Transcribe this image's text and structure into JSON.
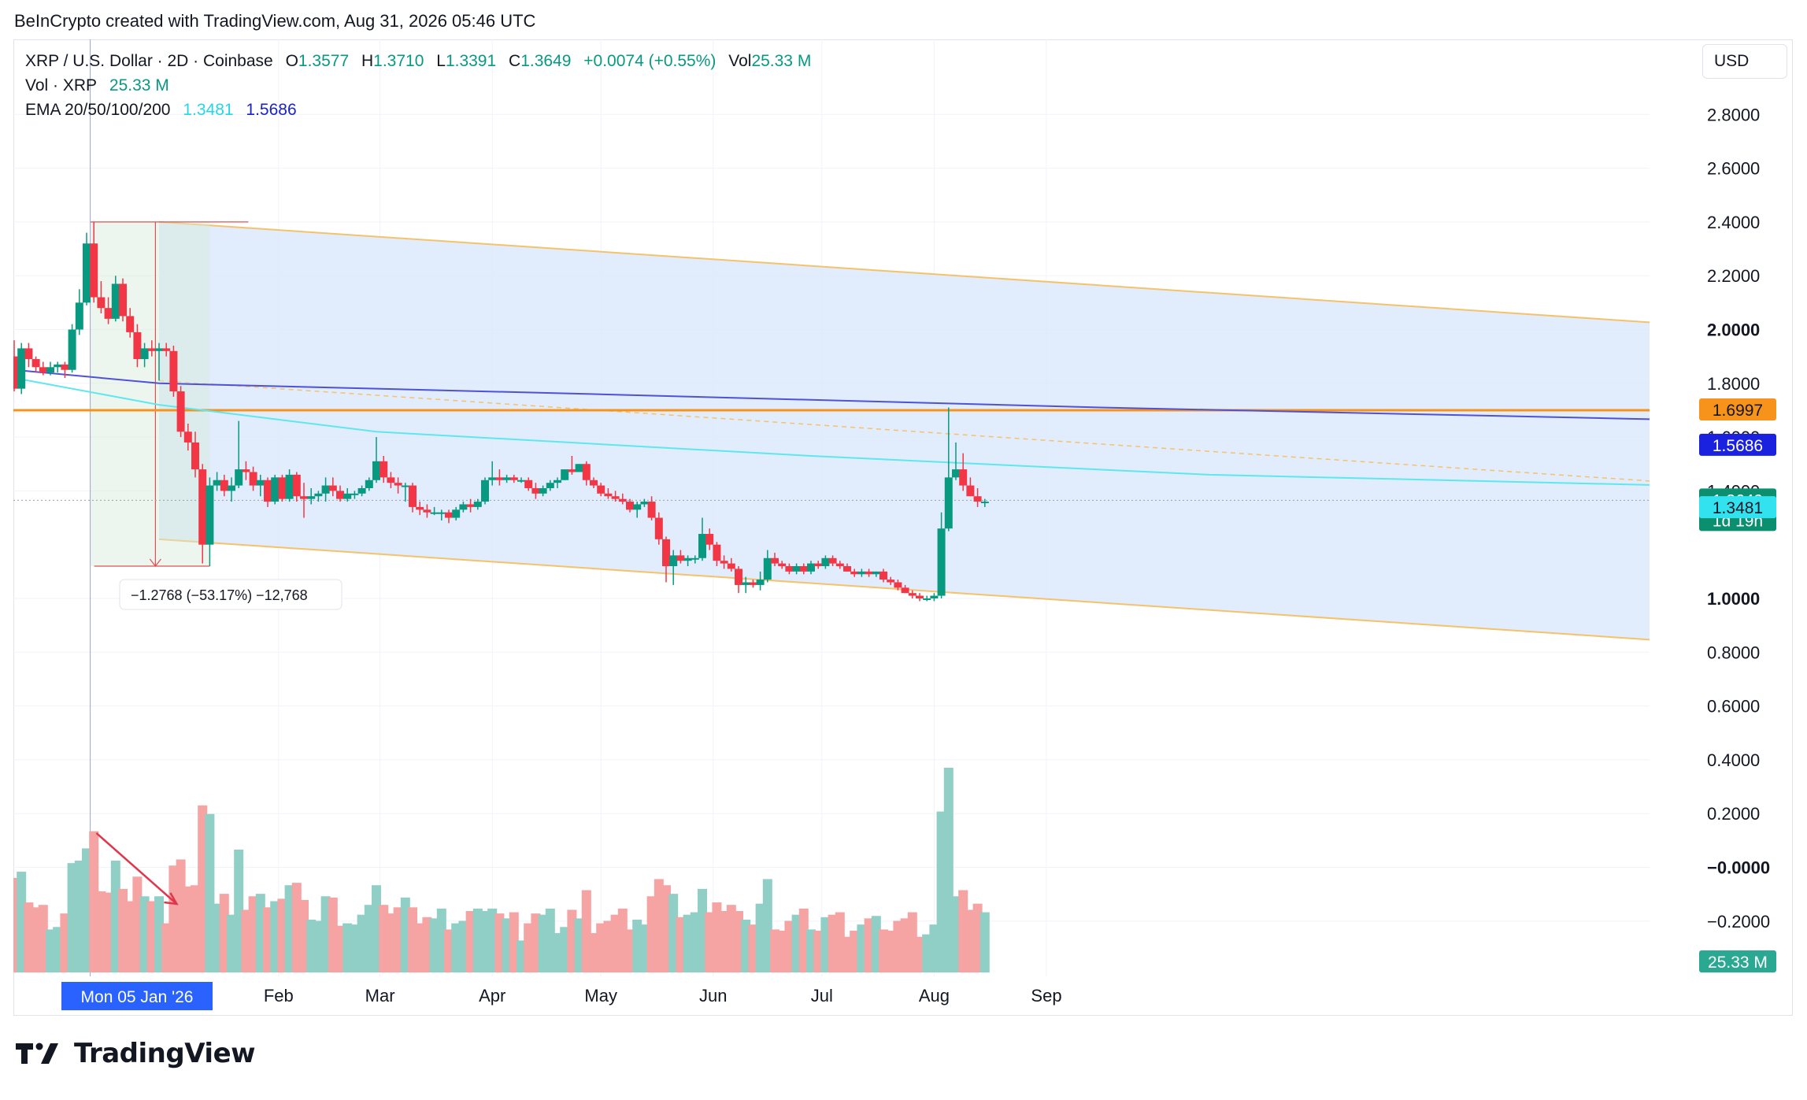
{
  "attribution": "BeInCrypto created with TradingView.com, Aug 31, 2026 05:46 UTC",
  "legend": {
    "symbol": "XRP / U.S. Dollar · 2D · Coinbase",
    "o_label": "O",
    "o_value": "1.3577",
    "h_label": "H",
    "h_value": "1.3710",
    "l_label": "L",
    "l_value": "1.3391",
    "c_label": "C",
    "c_value": "1.3649",
    "change": "+0.0074 (+0.55%)",
    "vol_label": "Vol",
    "vol_value": "25.33 M",
    "vol_xrp_label": "Vol · XRP",
    "vol_xrp_value": "25.33 M",
    "ema_label": "EMA 20/50/100/200",
    "ema1": "1.3481",
    "ema2": "1.5686"
  },
  "currency": "USD",
  "measure_label": "−1.2768 (−53.17%) −12,768",
  "date_badge": "Mon 05 Jan '26",
  "footer_brand": "TradingView",
  "colors": {
    "up": "#089981",
    "down": "#f23645",
    "up_vol": "#8fcfc6",
    "down_vol": "#f5a3a3",
    "ema1": "#5ee7ef",
    "ema2": "#4f52d6",
    "resistance": "#f7931a",
    "channel_fill": "#dce9fb",
    "channel_line": "#f5c26b"
  },
  "chart_data": {
    "type": "candlestick",
    "y_ticks": [
      "2.8000",
      "2.6000",
      "2.4000",
      "2.2000",
      "2.0000",
      "1.8000",
      "1.6000",
      "1.4000",
      "1.0000",
      "0.8000",
      "0.6000",
      "0.4000",
      "0.2000",
      "−0.0000",
      "−0.2000"
    ],
    "bold_ticks": [
      "2.0000",
      "1.0000",
      "−0.0000"
    ],
    "ylim": [
      -0.4,
      3.0
    ],
    "x_ticks": [
      {
        "label": "Feb",
        "date": "2026-02-01"
      },
      {
        "label": "Mar",
        "date": "2026-03-01"
      },
      {
        "label": "Apr",
        "date": "2026-04-01"
      },
      {
        "label": "May",
        "date": "2026-05-01"
      },
      {
        "label": "Jun",
        "date": "2026-06-01"
      },
      {
        "label": "Jul",
        "date": "2026-07-01"
      },
      {
        "label": "Aug",
        "date": "2026-08-01"
      },
      {
        "label": "Sep",
        "date": "2026-09-01"
      }
    ],
    "candles": [
      {
        "d": "2025-11-20",
        "o": 1.9,
        "h": 1.96,
        "l": 1.77,
        "c": 1.78
      },
      {
        "d": "2025-11-22",
        "o": 1.78,
        "h": 1.95,
        "l": 1.76,
        "c": 1.93
      },
      {
        "d": "2025-11-24",
        "o": 1.93,
        "h": 1.95,
        "l": 1.86,
        "c": 1.89
      },
      {
        "d": "2025-11-26",
        "o": 1.89,
        "h": 1.9,
        "l": 1.84,
        "c": 1.86
      },
      {
        "d": "2025-11-28",
        "o": 1.86,
        "h": 1.88,
        "l": 1.83,
        "c": 1.84
      },
      {
        "d": "2025-11-30",
        "o": 1.84,
        "h": 1.88,
        "l": 1.83,
        "c": 1.86
      },
      {
        "d": "2025-12-02",
        "o": 1.86,
        "h": 1.88,
        "l": 1.84,
        "c": 1.87
      },
      {
        "d": "2025-12-04",
        "o": 1.87,
        "h": 1.88,
        "l": 1.82,
        "c": 1.85
      },
      {
        "d": "2025-12-06",
        "o": 1.85,
        "h": 2.02,
        "l": 1.84,
        "c": 2.0
      },
      {
        "d": "2025-12-08",
        "o": 2.0,
        "h": 2.15,
        "l": 1.98,
        "c": 2.1
      },
      {
        "d": "2025-12-10",
        "o": 2.1,
        "h": 2.36,
        "l": 2.09,
        "c": 2.32
      },
      {
        "d": "2025-12-12",
        "o": 2.32,
        "h": 2.4,
        "l": 2.1,
        "c": 2.12
      },
      {
        "d": "2025-12-14",
        "o": 2.12,
        "h": 2.18,
        "l": 2.06,
        "c": 2.08
      },
      {
        "d": "2025-12-16",
        "o": 2.08,
        "h": 2.12,
        "l": 2.02,
        "c": 2.04
      },
      {
        "d": "2025-12-18",
        "o": 2.04,
        "h": 2.2,
        "l": 2.03,
        "c": 2.17
      },
      {
        "d": "2025-12-20",
        "o": 2.17,
        "h": 2.19,
        "l": 2.03,
        "c": 2.05
      },
      {
        "d": "2025-12-22",
        "o": 2.05,
        "h": 2.08,
        "l": 1.97,
        "c": 1.99
      },
      {
        "d": "2025-12-24",
        "o": 1.99,
        "h": 2.02,
        "l": 1.86,
        "c": 1.89
      },
      {
        "d": "2025-12-26",
        "o": 1.89,
        "h": 1.95,
        "l": 1.86,
        "c": 1.93
      },
      {
        "d": "2025-12-28",
        "o": 1.93,
        "h": 1.96,
        "l": 1.9,
        "c": 1.92
      },
      {
        "d": "2025-12-30",
        "o": 1.92,
        "h": 1.95,
        "l": 1.81,
        "c": 1.93
      },
      {
        "d": "2026-01-01",
        "o": 1.93,
        "h": 1.95,
        "l": 1.9,
        "c": 1.92
      },
      {
        "d": "2026-01-03",
        "o": 1.92,
        "h": 1.94,
        "l": 1.75,
        "c": 1.77
      },
      {
        "d": "2026-01-05",
        "o": 1.77,
        "h": 1.79,
        "l": 1.6,
        "c": 1.62
      },
      {
        "d": "2026-01-07",
        "o": 1.62,
        "h": 1.65,
        "l": 1.55,
        "c": 1.58
      },
      {
        "d": "2026-01-09",
        "o": 1.58,
        "h": 1.62,
        "l": 1.45,
        "c": 1.48
      },
      {
        "d": "2026-01-11",
        "o": 1.48,
        "h": 1.5,
        "l": 1.13,
        "c": 1.2
      },
      {
        "d": "2026-01-13",
        "o": 1.2,
        "h": 1.45,
        "l": 1.12,
        "c": 1.42
      },
      {
        "d": "2026-01-15",
        "o": 1.42,
        "h": 1.47,
        "l": 1.4,
        "c": 1.44
      },
      {
        "d": "2026-01-17",
        "o": 1.44,
        "h": 1.46,
        "l": 1.38,
        "c": 1.4
      },
      {
        "d": "2026-01-19",
        "o": 1.4,
        "h": 1.45,
        "l": 1.36,
        "c": 1.42
      },
      {
        "d": "2026-01-21",
        "o": 1.42,
        "h": 1.66,
        "l": 1.41,
        "c": 1.48
      },
      {
        "d": "2026-01-23",
        "o": 1.48,
        "h": 1.51,
        "l": 1.44,
        "c": 1.47
      },
      {
        "d": "2026-01-25",
        "o": 1.47,
        "h": 1.49,
        "l": 1.4,
        "c": 1.42
      },
      {
        "d": "2026-01-27",
        "o": 1.42,
        "h": 1.46,
        "l": 1.38,
        "c": 1.44
      },
      {
        "d": "2026-01-29",
        "o": 1.44,
        "h": 1.45,
        "l": 1.34,
        "c": 1.36
      },
      {
        "d": "2026-01-31",
        "o": 1.36,
        "h": 1.46,
        "l": 1.35,
        "c": 1.45
      },
      {
        "d": "2026-02-02",
        "o": 1.45,
        "h": 1.46,
        "l": 1.36,
        "c": 1.37
      },
      {
        "d": "2026-02-04",
        "o": 1.37,
        "h": 1.48,
        "l": 1.36,
        "c": 1.46
      },
      {
        "d": "2026-02-06",
        "o": 1.46,
        "h": 1.47,
        "l": 1.36,
        "c": 1.38
      },
      {
        "d": "2026-02-08",
        "o": 1.38,
        "h": 1.43,
        "l": 1.3,
        "c": 1.37
      },
      {
        "d": "2026-02-10",
        "o": 1.37,
        "h": 1.41,
        "l": 1.35,
        "c": 1.38
      },
      {
        "d": "2026-02-12",
        "o": 1.38,
        "h": 1.4,
        "l": 1.36,
        "c": 1.39
      },
      {
        "d": "2026-02-14",
        "o": 1.39,
        "h": 1.45,
        "l": 1.36,
        "c": 1.42
      },
      {
        "d": "2026-02-16",
        "o": 1.42,
        "h": 1.45,
        "l": 1.38,
        "c": 1.4
      },
      {
        "d": "2026-02-18",
        "o": 1.4,
        "h": 1.42,
        "l": 1.36,
        "c": 1.37
      },
      {
        "d": "2026-02-20",
        "o": 1.37,
        "h": 1.41,
        "l": 1.36,
        "c": 1.39
      },
      {
        "d": "2026-02-22",
        "o": 1.39,
        "h": 1.4,
        "l": 1.37,
        "c": 1.39
      },
      {
        "d": "2026-02-24",
        "o": 1.39,
        "h": 1.42,
        "l": 1.38,
        "c": 1.41
      },
      {
        "d": "2026-02-26",
        "o": 1.41,
        "h": 1.45,
        "l": 1.4,
        "c": 1.44
      },
      {
        "d": "2026-02-28",
        "o": 1.44,
        "h": 1.6,
        "l": 1.43,
        "c": 1.51
      },
      {
        "d": "2026-03-02",
        "o": 1.51,
        "h": 1.53,
        "l": 1.43,
        "c": 1.45
      },
      {
        "d": "2026-03-04",
        "o": 1.45,
        "h": 1.47,
        "l": 1.41,
        "c": 1.43
      },
      {
        "d": "2026-03-06",
        "o": 1.43,
        "h": 1.45,
        "l": 1.39,
        "c": 1.42
      },
      {
        "d": "2026-03-08",
        "o": 1.42,
        "h": 1.43,
        "l": 1.36,
        "c": 1.42
      },
      {
        "d": "2026-03-10",
        "o": 1.42,
        "h": 1.43,
        "l": 1.32,
        "c": 1.34
      },
      {
        "d": "2026-03-12",
        "o": 1.34,
        "h": 1.36,
        "l": 1.31,
        "c": 1.33
      },
      {
        "d": "2026-03-14",
        "o": 1.33,
        "h": 1.35,
        "l": 1.3,
        "c": 1.32
      },
      {
        "d": "2026-03-16",
        "o": 1.32,
        "h": 1.34,
        "l": 1.31,
        "c": 1.32
      },
      {
        "d": "2026-03-18",
        "o": 1.32,
        "h": 1.33,
        "l": 1.29,
        "c": 1.32
      },
      {
        "d": "2026-03-20",
        "o": 1.32,
        "h": 1.33,
        "l": 1.28,
        "c": 1.3
      },
      {
        "d": "2026-03-22",
        "o": 1.3,
        "h": 1.34,
        "l": 1.29,
        "c": 1.33
      },
      {
        "d": "2026-03-24",
        "o": 1.33,
        "h": 1.36,
        "l": 1.32,
        "c": 1.35
      },
      {
        "d": "2026-03-26",
        "o": 1.35,
        "h": 1.37,
        "l": 1.32,
        "c": 1.34
      },
      {
        "d": "2026-03-28",
        "o": 1.34,
        "h": 1.37,
        "l": 1.33,
        "c": 1.36
      },
      {
        "d": "2026-03-30",
        "o": 1.36,
        "h": 1.45,
        "l": 1.35,
        "c": 1.44
      },
      {
        "d": "2026-04-01",
        "o": 1.44,
        "h": 1.51,
        "l": 1.42,
        "c": 1.45
      },
      {
        "d": "2026-04-03",
        "o": 1.45,
        "h": 1.48,
        "l": 1.42,
        "c": 1.44
      },
      {
        "d": "2026-04-05",
        "o": 1.44,
        "h": 1.46,
        "l": 1.43,
        "c": 1.45
      },
      {
        "d": "2026-04-07",
        "o": 1.45,
        "h": 1.46,
        "l": 1.43,
        "c": 1.44
      },
      {
        "d": "2026-04-09",
        "o": 1.44,
        "h": 1.45,
        "l": 1.43,
        "c": 1.44
      },
      {
        "d": "2026-04-11",
        "o": 1.44,
        "h": 1.45,
        "l": 1.4,
        "c": 1.41
      },
      {
        "d": "2026-04-13",
        "o": 1.41,
        "h": 1.43,
        "l": 1.37,
        "c": 1.39
      },
      {
        "d": "2026-04-15",
        "o": 1.39,
        "h": 1.42,
        "l": 1.38,
        "c": 1.41
      },
      {
        "d": "2026-04-17",
        "o": 1.41,
        "h": 1.44,
        "l": 1.4,
        "c": 1.43
      },
      {
        "d": "2026-04-19",
        "o": 1.43,
        "h": 1.45,
        "l": 1.41,
        "c": 1.44
      },
      {
        "d": "2026-04-21",
        "o": 1.44,
        "h": 1.48,
        "l": 1.44,
        "c": 1.48
      },
      {
        "d": "2026-04-23",
        "o": 1.48,
        "h": 1.53,
        "l": 1.46,
        "c": 1.47
      },
      {
        "d": "2026-04-25",
        "o": 1.47,
        "h": 1.5,
        "l": 1.47,
        "c": 1.5
      },
      {
        "d": "2026-04-27",
        "o": 1.5,
        "h": 1.51,
        "l": 1.42,
        "c": 1.44
      },
      {
        "d": "2026-04-29",
        "o": 1.44,
        "h": 1.45,
        "l": 1.41,
        "c": 1.42
      },
      {
        "d": "2026-05-01",
        "o": 1.42,
        "h": 1.43,
        "l": 1.38,
        "c": 1.39
      },
      {
        "d": "2026-05-03",
        "o": 1.39,
        "h": 1.41,
        "l": 1.37,
        "c": 1.38
      },
      {
        "d": "2026-05-05",
        "o": 1.38,
        "h": 1.4,
        "l": 1.36,
        "c": 1.37
      },
      {
        "d": "2026-05-07",
        "o": 1.37,
        "h": 1.39,
        "l": 1.35,
        "c": 1.36
      },
      {
        "d": "2026-05-09",
        "o": 1.36,
        "h": 1.37,
        "l": 1.32,
        "c": 1.33
      },
      {
        "d": "2026-05-11",
        "o": 1.33,
        "h": 1.36,
        "l": 1.3,
        "c": 1.35
      },
      {
        "d": "2026-05-13",
        "o": 1.35,
        "h": 1.37,
        "l": 1.34,
        "c": 1.36
      },
      {
        "d": "2026-05-15",
        "o": 1.36,
        "h": 1.38,
        "l": 1.29,
        "c": 1.3
      },
      {
        "d": "2026-05-17",
        "o": 1.3,
        "h": 1.32,
        "l": 1.2,
        "c": 1.22
      },
      {
        "d": "2026-05-19",
        "o": 1.22,
        "h": 1.23,
        "l": 1.06,
        "c": 1.12
      },
      {
        "d": "2026-05-21",
        "o": 1.12,
        "h": 1.18,
        "l": 1.05,
        "c": 1.16
      },
      {
        "d": "2026-05-23",
        "o": 1.16,
        "h": 1.18,
        "l": 1.13,
        "c": 1.14
      },
      {
        "d": "2026-05-25",
        "o": 1.14,
        "h": 1.16,
        "l": 1.12,
        "c": 1.15
      },
      {
        "d": "2026-05-27",
        "o": 1.15,
        "h": 1.16,
        "l": 1.13,
        "c": 1.15
      },
      {
        "d": "2026-05-29",
        "o": 1.15,
        "h": 1.3,
        "l": 1.14,
        "c": 1.24
      },
      {
        "d": "2026-05-31",
        "o": 1.24,
        "h": 1.26,
        "l": 1.18,
        "c": 1.2
      },
      {
        "d": "2026-06-02",
        "o": 1.2,
        "h": 1.21,
        "l": 1.12,
        "c": 1.14
      },
      {
        "d": "2026-06-04",
        "o": 1.14,
        "h": 1.16,
        "l": 1.11,
        "c": 1.13
      },
      {
        "d": "2026-06-06",
        "o": 1.13,
        "h": 1.15,
        "l": 1.1,
        "c": 1.11
      },
      {
        "d": "2026-06-08",
        "o": 1.11,
        "h": 1.12,
        "l": 1.02,
        "c": 1.05
      },
      {
        "d": "2026-06-10",
        "o": 1.05,
        "h": 1.08,
        "l": 1.02,
        "c": 1.06
      },
      {
        "d": "2026-06-12",
        "o": 1.06,
        "h": 1.07,
        "l": 1.04,
        "c": 1.05
      },
      {
        "d": "2026-06-14",
        "o": 1.05,
        "h": 1.1,
        "l": 1.03,
        "c": 1.07
      },
      {
        "d": "2026-06-16",
        "o": 1.07,
        "h": 1.18,
        "l": 1.06,
        "c": 1.15
      },
      {
        "d": "2026-06-18",
        "o": 1.15,
        "h": 1.17,
        "l": 1.12,
        "c": 1.13
      },
      {
        "d": "2026-06-20",
        "o": 1.13,
        "h": 1.14,
        "l": 1.11,
        "c": 1.12
      },
      {
        "d": "2026-06-22",
        "o": 1.12,
        "h": 1.13,
        "l": 1.09,
        "c": 1.1
      },
      {
        "d": "2026-06-24",
        "o": 1.1,
        "h": 1.13,
        "l": 1.09,
        "c": 1.12
      },
      {
        "d": "2026-06-26",
        "o": 1.12,
        "h": 1.13,
        "l": 1.09,
        "c": 1.1
      },
      {
        "d": "2026-06-28",
        "o": 1.1,
        "h": 1.14,
        "l": 1.09,
        "c": 1.13
      },
      {
        "d": "2026-06-30",
        "o": 1.13,
        "h": 1.14,
        "l": 1.11,
        "c": 1.12
      },
      {
        "d": "2026-07-02",
        "o": 1.12,
        "h": 1.16,
        "l": 1.11,
        "c": 1.15
      },
      {
        "d": "2026-07-04",
        "o": 1.15,
        "h": 1.16,
        "l": 1.12,
        "c": 1.13
      },
      {
        "d": "2026-07-06",
        "o": 1.13,
        "h": 1.14,
        "l": 1.11,
        "c": 1.12
      },
      {
        "d": "2026-07-08",
        "o": 1.12,
        "h": 1.13,
        "l": 1.1,
        "c": 1.1
      },
      {
        "d": "2026-07-10",
        "o": 1.1,
        "h": 1.11,
        "l": 1.08,
        "c": 1.09
      },
      {
        "d": "2026-07-12",
        "o": 1.09,
        "h": 1.11,
        "l": 1.08,
        "c": 1.1
      },
      {
        "d": "2026-07-14",
        "o": 1.1,
        "h": 1.11,
        "l": 1.08,
        "c": 1.09
      },
      {
        "d": "2026-07-16",
        "o": 1.09,
        "h": 1.1,
        "l": 1.08,
        "c": 1.1
      },
      {
        "d": "2026-07-18",
        "o": 1.1,
        "h": 1.11,
        "l": 1.06,
        "c": 1.07
      },
      {
        "d": "2026-07-20",
        "o": 1.07,
        "h": 1.08,
        "l": 1.05,
        "c": 1.06
      },
      {
        "d": "2026-07-22",
        "o": 1.06,
        "h": 1.07,
        "l": 1.03,
        "c": 1.04
      },
      {
        "d": "2026-07-24",
        "o": 1.04,
        "h": 1.05,
        "l": 1.02,
        "c": 1.02
      },
      {
        "d": "2026-07-26",
        "o": 1.02,
        "h": 1.03,
        "l": 1.0,
        "c": 1.01
      },
      {
        "d": "2026-07-28",
        "o": 1.01,
        "h": 1.02,
        "l": 0.99,
        "c": 1.0
      },
      {
        "d": "2026-07-30",
        "o": 1.0,
        "h": 1.01,
        "l": 0.99,
        "c": 1.0
      },
      {
        "d": "2026-08-01",
        "o": 1.0,
        "h": 1.02,
        "l": 0.99,
        "c": 1.01
      },
      {
        "d": "2026-08-03",
        "o": 1.01,
        "h": 1.32,
        "l": 1.0,
        "c": 1.26
      },
      {
        "d": "2026-08-05",
        "o": 1.26,
        "h": 1.71,
        "l": 1.25,
        "c": 1.45
      },
      {
        "d": "2026-08-07",
        "o": 1.45,
        "h": 1.58,
        "l": 1.44,
        "c": 1.48
      },
      {
        "d": "2026-08-09",
        "o": 1.48,
        "h": 1.54,
        "l": 1.4,
        "c": 1.42
      },
      {
        "d": "2026-08-11",
        "o": 1.42,
        "h": 1.45,
        "l": 1.38,
        "c": 1.38
      },
      {
        "d": "2026-08-13",
        "o": 1.38,
        "h": 1.41,
        "l": 1.34,
        "c": 1.36
      },
      {
        "d": "2026-08-15",
        "o": 1.36,
        "h": 1.37,
        "l": 1.34,
        "c": 1.36
      }
    ],
    "volume_scale_max": 100,
    "ema20": [
      [
        0,
        1.82
      ],
      [
        40,
        1.72
      ],
      [
        100,
        1.62
      ],
      [
        220,
        1.53
      ],
      [
        330,
        1.46
      ],
      [
        490,
        1.41
      ],
      [
        620,
        1.35
      ],
      [
        730,
        1.32
      ],
      [
        820,
        1.3
      ],
      [
        870,
        1.32
      ],
      [
        900,
        1.348
      ]
    ],
    "ema200": [
      [
        0,
        1.85
      ],
      [
        40,
        1.8
      ],
      [
        160,
        1.76
      ],
      [
        300,
        1.71
      ],
      [
        440,
        1.67
      ],
      [
        580,
        1.63
      ],
      [
        700,
        1.6
      ],
      [
        780,
        1.58
      ],
      [
        900,
        1.5686
      ]
    ],
    "resistance_level": 1.6997,
    "channel": {
      "upper": [
        [
          40,
          2.4
        ],
        [
          900,
          1.62
        ]
      ],
      "lower": [
        [
          40,
          1.22
        ],
        [
          900,
          0.44
        ]
      ],
      "mid": [
        [
          40,
          1.81
        ],
        [
          900,
          1.03
        ]
      ]
    },
    "price_labels": [
      {
        "value": "1.6997",
        "bg": "#f7931a",
        "fg": "#131722"
      },
      {
        "value": "1.5686",
        "bg": "#1a22e0",
        "fg": "#ffffff"
      },
      {
        "value": "1.3649",
        "bg": "#0b8f6f",
        "fg": "#ffffff"
      },
      {
        "value": "1d 19h",
        "bg": "#0b8f6f",
        "fg": "#ffffff"
      },
      {
        "value": "1.3481",
        "bg": "#33e2ef",
        "fg": "#131722"
      },
      {
        "value": "25.33 M",
        "bg": "#2aa891",
        "fg": "#ffffff"
      }
    ]
  }
}
